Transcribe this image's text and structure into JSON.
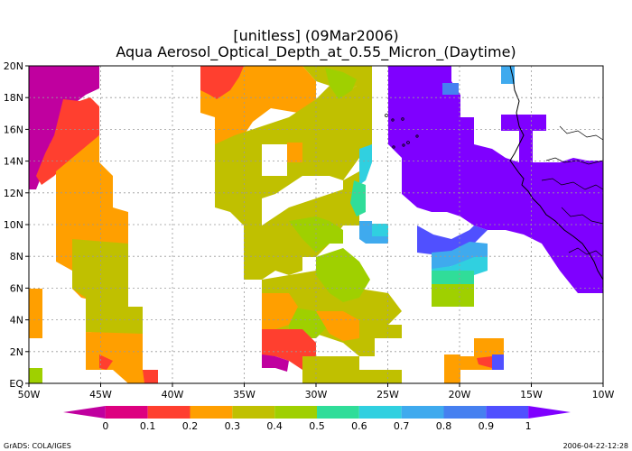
{
  "title": {
    "line1": "[unitless]  (09Mar2006)",
    "line2": "Aqua Aerosol_Optical_Depth_at_0.55_Micron_(Daytime)"
  },
  "map": {
    "lon_range": [
      -50,
      -10
    ],
    "lat_range": [
      0,
      20
    ],
    "grid": "dotted",
    "colors": {
      "land": "#7f00ff",
      "coastline": "#000000"
    },
    "x_ticks": [
      "50W",
      "45W",
      "40W",
      "35W",
      "30W",
      "25W",
      "20W",
      "15W",
      "10W"
    ],
    "y_ticks": [
      "EQ",
      "2N",
      "4N",
      "6N",
      "8N",
      "10N",
      "12N",
      "14N",
      "16N",
      "18N",
      "20N"
    ]
  },
  "colorbar": {
    "colors": [
      "#c0009f",
      "#dd0080",
      "#ff3f2f",
      "#ff9f00",
      "#c0c000",
      "#9fd000",
      "#30dd99",
      "#30d0e0",
      "#3faaee",
      "#4680f0",
      "#5050ff",
      "#7f00ff"
    ],
    "labels": [
      "0",
      "0.1",
      "0.2",
      "0.3",
      "0.4",
      "0.5",
      "0.6",
      "0.7",
      "0.8",
      "0.9",
      "1"
    ]
  },
  "credits": {
    "left": "GrADS: COLA/IGES",
    "right": "2006-04-22-12:28"
  }
}
